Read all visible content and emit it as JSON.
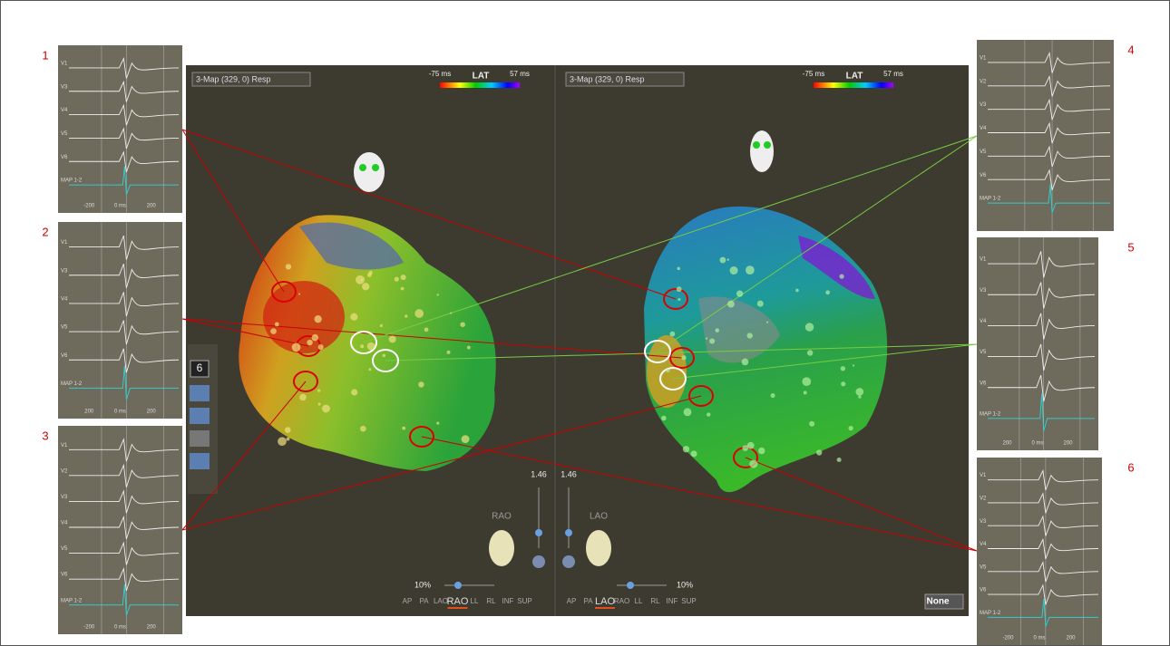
{
  "panels": [
    {
      "number": "1",
      "leads": [
        "V1",
        "V3",
        "V4",
        "V5",
        "V6"
      ],
      "map_label": "MAP 1-2",
      "axis": [
        "-200",
        "0 ms",
        "200"
      ]
    },
    {
      "number": "2",
      "leads": [
        "V1",
        "V3",
        "V4",
        "V5",
        "V6"
      ],
      "map_label": "MAP 1-2",
      "axis": [
        "200",
        "0 ms",
        "200"
      ]
    },
    {
      "number": "3",
      "leads": [
        "V1",
        "V2",
        "V3",
        "V4",
        "V5",
        "V6"
      ],
      "map_label": "MAP 1-2",
      "axis": [
        "-200",
        "0 ms",
        "200"
      ]
    },
    {
      "number": "4",
      "leads": [
        "V1",
        "V2",
        "V3",
        "V4",
        "V5",
        "V6"
      ],
      "map_label": "MAP 1-2",
      "axis": []
    },
    {
      "number": "5",
      "leads": [
        "V1",
        "V3",
        "V4",
        "V5",
        "V6"
      ],
      "map_label": "MAP 1-2",
      "axis": [
        "200",
        "0 ms",
        "200"
      ]
    },
    {
      "number": "6",
      "leads": [
        "V1",
        "V2",
        "V3",
        "V4",
        "V5",
        "V6"
      ],
      "map_label": "MAP 1-2",
      "axis": [
        "-200",
        "0 ms",
        "200"
      ]
    }
  ],
  "views": [
    {
      "dropdown": "3-Map (329, 0) Resp",
      "lat_min": "-75 ms",
      "lat_label": "LAT",
      "lat_max": "57 ms",
      "zoom": "1.46",
      "orientation": "RAO",
      "opacity": "10%",
      "view_buttons": [
        "AP",
        "PA",
        "LAO",
        "RAO",
        "LL",
        "RL",
        "INF",
        "SUP"
      ],
      "active_view": 3
    },
    {
      "dropdown": "3-Map (329, 0) Resp",
      "lat_min": "-75 ms",
      "lat_label": "LAT",
      "lat_max": "57 ms",
      "zoom": "1.46",
      "orientation": "LAO",
      "opacity": "10%",
      "view_buttons": [
        "AP",
        "PA",
        "LAO",
        "RAO",
        "LL",
        "RL",
        "INF",
        "SUP"
      ],
      "active_view": 2
    }
  ],
  "toolbar": {
    "count": "6"
  },
  "none_button": "None"
}
